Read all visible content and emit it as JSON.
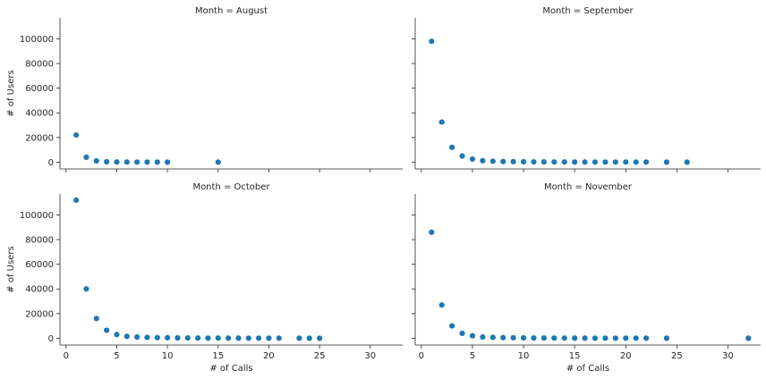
{
  "chart_data": {
    "type": "scatter",
    "color": "#1f77b4",
    "xlabel": "# of Calls",
    "ylabel": "# of Users",
    "xlim": [
      -0.6,
      33.2
    ],
    "ylim": [
      -5500,
      117000
    ],
    "xticks": [
      0,
      5,
      10,
      15,
      20,
      25,
      30
    ],
    "yticks": [
      0,
      20000,
      40000,
      60000,
      80000,
      100000
    ],
    "grid": false,
    "facets": [
      {
        "title": "Month = August",
        "points": [
          [
            1,
            22000
          ],
          [
            2,
            4000
          ],
          [
            3,
            1000
          ],
          [
            4,
            300
          ],
          [
            5,
            150
          ],
          [
            6,
            100
          ],
          [
            7,
            80
          ],
          [
            8,
            50
          ],
          [
            9,
            40
          ],
          [
            10,
            30
          ],
          [
            15,
            20
          ]
        ]
      },
      {
        "title": "Month = September",
        "points": [
          [
            1,
            98000
          ],
          [
            2,
            32500
          ],
          [
            3,
            12000
          ],
          [
            4,
            5000
          ],
          [
            5,
            2500
          ],
          [
            6,
            1200
          ],
          [
            7,
            800
          ],
          [
            8,
            500
          ],
          [
            9,
            400
          ],
          [
            10,
            300
          ],
          [
            11,
            250
          ],
          [
            12,
            200
          ],
          [
            13,
            180
          ],
          [
            14,
            150
          ],
          [
            15,
            120
          ],
          [
            16,
            100
          ],
          [
            17,
            90
          ],
          [
            18,
            80
          ],
          [
            19,
            70
          ],
          [
            20,
            60
          ],
          [
            21,
            50
          ],
          [
            22,
            40
          ],
          [
            24,
            30
          ],
          [
            26,
            20
          ]
        ]
      },
      {
        "title": "Month = October",
        "points": [
          [
            1,
            112000
          ],
          [
            2,
            40000
          ],
          [
            3,
            16000
          ],
          [
            4,
            6500
          ],
          [
            5,
            3000
          ],
          [
            6,
            1500
          ],
          [
            7,
            1000
          ],
          [
            8,
            700
          ],
          [
            9,
            500
          ],
          [
            10,
            400
          ],
          [
            11,
            300
          ],
          [
            12,
            250
          ],
          [
            13,
            200
          ],
          [
            14,
            180
          ],
          [
            15,
            150
          ],
          [
            16,
            120
          ],
          [
            17,
            100
          ],
          [
            18,
            90
          ],
          [
            19,
            80
          ],
          [
            20,
            70
          ],
          [
            21,
            60
          ],
          [
            23,
            40
          ],
          [
            24,
            30
          ],
          [
            25,
            20
          ]
        ]
      },
      {
        "title": "Month = November",
        "points": [
          [
            1,
            86000
          ],
          [
            2,
            27000
          ],
          [
            3,
            10000
          ],
          [
            4,
            4000
          ],
          [
            5,
            2000
          ],
          [
            6,
            1000
          ],
          [
            7,
            700
          ],
          [
            8,
            500
          ],
          [
            9,
            400
          ],
          [
            10,
            300
          ],
          [
            11,
            250
          ],
          [
            12,
            200
          ],
          [
            13,
            180
          ],
          [
            14,
            150
          ],
          [
            15,
            120
          ],
          [
            16,
            100
          ],
          [
            17,
            90
          ],
          [
            18,
            80
          ],
          [
            19,
            70
          ],
          [
            20,
            60
          ],
          [
            21,
            50
          ],
          [
            22,
            40
          ],
          [
            24,
            30
          ],
          [
            32,
            20
          ]
        ]
      }
    ]
  }
}
